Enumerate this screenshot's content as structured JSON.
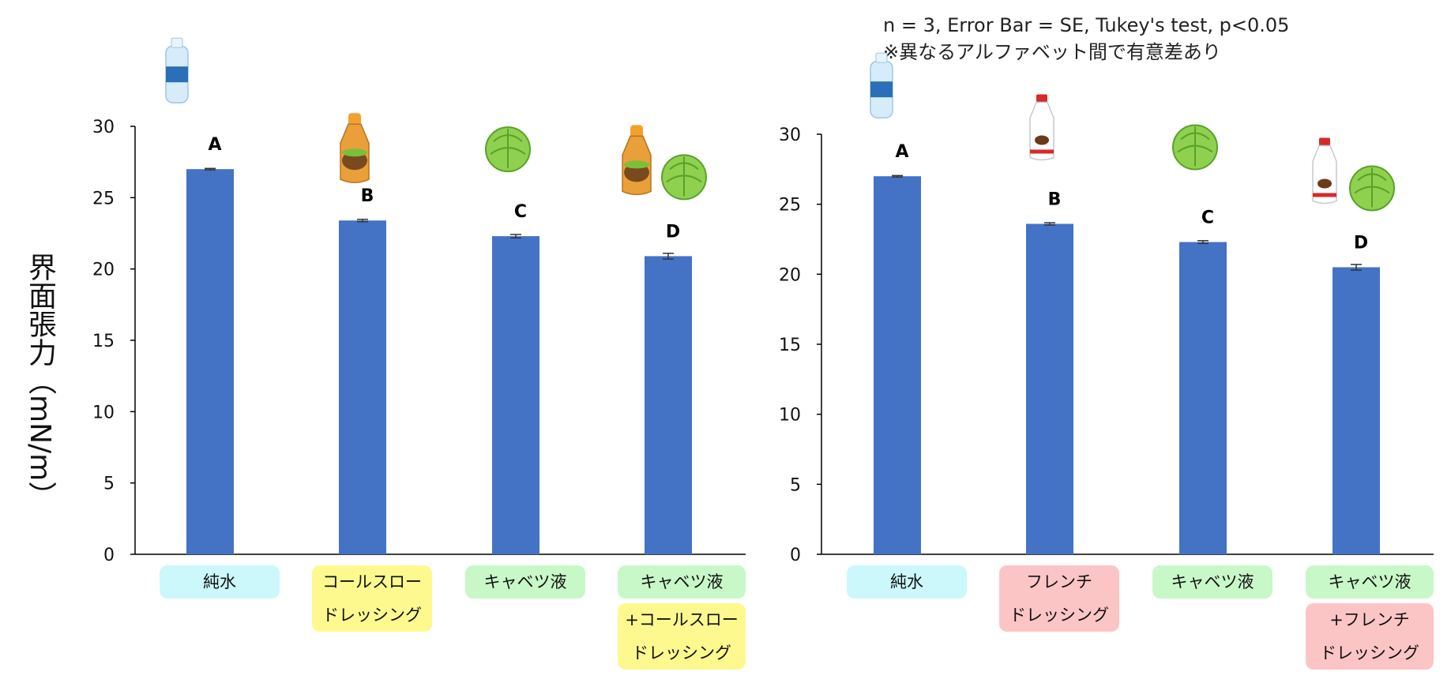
{
  "note": {
    "line1": "n = 3, Error Bar = SE, Tukey's test, p<0.05",
    "line2": "※異なるアルファベット間で有意差あり"
  },
  "y_axis_label": "界面張力（mN/m）",
  "colors": {
    "bar": "#4472c4",
    "water": "#ccf7fb",
    "coleslaw": "#fdf98f",
    "cabbage": "#c8f7c8",
    "french": "#fcc5c5"
  },
  "chart_data": [
    {
      "type": "bar",
      "title": "",
      "xlabel": "",
      "ylabel": "界面張力（mN/m）",
      "ylim": [
        0,
        30
      ],
      "yticks": [
        0,
        5,
        10,
        15,
        20,
        25,
        30
      ],
      "grid": false,
      "error_bars": "SE",
      "categories": [
        "純水",
        "コールスロー ドレッシング",
        "キャベツ液",
        "キャベツ液 +コールスロー ドレッシング"
      ],
      "category_labels": [
        [
          "純水"
        ],
        [
          "コールスロー",
          "ドレッシング"
        ],
        [
          "キャベツ液"
        ],
        [
          "キャベツ液",
          "+コールスロー",
          "ドレッシング"
        ]
      ],
      "category_colors": [
        "water",
        "coleslaw",
        "cabbage",
        "cabbage+coleslaw"
      ],
      "icons": [
        [
          "water-bottle-icon"
        ],
        [
          "coleslaw-dressing-icon"
        ],
        [
          "cabbage-icon"
        ],
        [
          "coleslaw-dressing-icon",
          "cabbage-icon"
        ]
      ],
      "values": [
        27.0,
        23.4,
        22.3,
        20.9
      ],
      "errors": [
        0.05,
        0.08,
        0.12,
        0.2
      ],
      "significance": [
        "A",
        "B",
        "C",
        "D"
      ]
    },
    {
      "type": "bar",
      "title": "",
      "xlabel": "",
      "ylabel": "",
      "ylim": [
        0,
        30
      ],
      "yticks": [
        0,
        5,
        10,
        15,
        20,
        25,
        30
      ],
      "grid": false,
      "error_bars": "SE",
      "categories": [
        "純水",
        "フレンチ ドレッシング",
        "キャベツ液",
        "キャベツ液 +フレンチ ドレッシング"
      ],
      "category_labels": [
        [
          "純水"
        ],
        [
          "フレンチ",
          "ドレッシング"
        ],
        [
          "キャベツ液"
        ],
        [
          "キャベツ液",
          "+フレンチ",
          "ドレッシング"
        ]
      ],
      "category_colors": [
        "water",
        "french",
        "cabbage",
        "cabbage+french"
      ],
      "icons": [
        [
          "water-bottle-icon"
        ],
        [
          "french-dressing-icon"
        ],
        [
          "cabbage-icon"
        ],
        [
          "french-dressing-icon",
          "cabbage-icon"
        ]
      ],
      "values": [
        27.0,
        23.6,
        22.3,
        20.5
      ],
      "errors": [
        0.05,
        0.08,
        0.1,
        0.2
      ],
      "significance": [
        "A",
        "B",
        "C",
        "D"
      ]
    }
  ]
}
